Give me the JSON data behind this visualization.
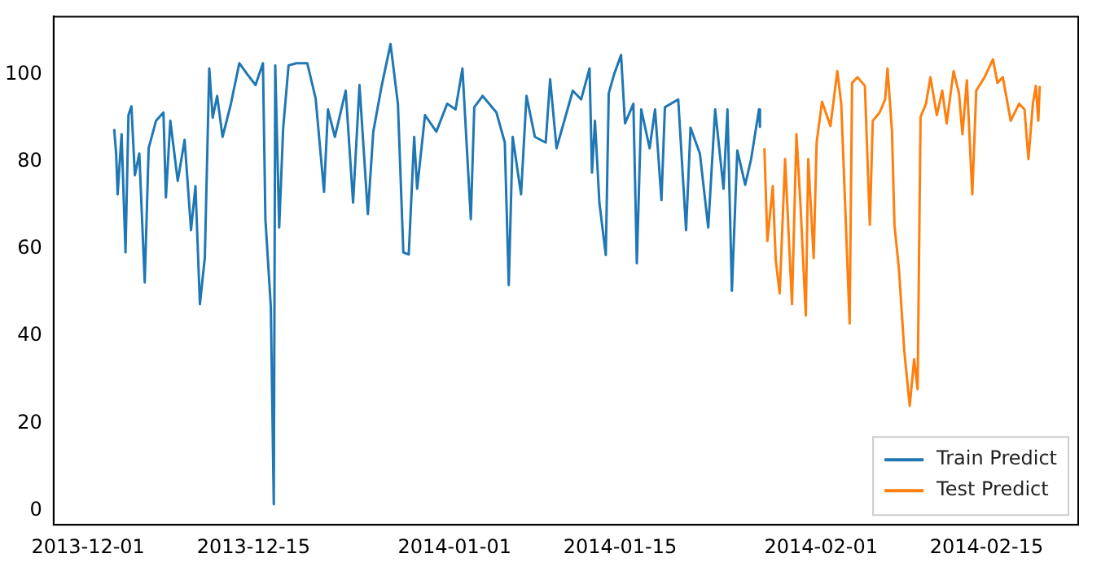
{
  "chart_data": {
    "type": "line",
    "xlim": [
      "2013-11-28T02:00",
      "2014-02-22T18:00"
    ],
    "xticks": [
      "2013-12-01",
      "2013-12-15",
      "2014-01-01",
      "2014-01-15",
      "2014-02-01",
      "2014-02-15"
    ],
    "ylim": [
      -3.3,
      113.3
    ],
    "yticks": [
      0,
      20,
      40,
      60,
      80,
      100
    ],
    "legend": "bottom right",
    "marker": "none",
    "line_style": "solid",
    "series": [
      {
        "name": "Train Predict",
        "color": "#1f77b4",
        "x": [
          "2013-12-03T05:00",
          "2013-12-03T09:00",
          "2013-12-03T12:00",
          "2013-12-03T20:00",
          "2013-12-04T04:00",
          "2013-12-04T10:00",
          "2013-12-04T16:00",
          "2013-12-04T23:00",
          "2013-12-05T08:00",
          "2013-12-05T19:00",
          "2013-12-06T03:00",
          "2013-12-06T18:00",
          "2013-12-07T09:00",
          "2013-12-07T14:00",
          "2013-12-07T23:00",
          "2013-12-08T14:00",
          "2013-12-09T04:00",
          "2013-12-09T17:00",
          "2013-12-10T02:00",
          "2013-12-10T11:00",
          "2013-12-10T21:00",
          "2013-12-11T06:00",
          "2013-12-11T13:00",
          "2013-12-11T22:00",
          "2013-12-12T09:00",
          "2013-12-13T02:00",
          "2013-12-13T19:00",
          "2013-12-14T11:00",
          "2013-12-15T04:00",
          "2013-12-15T19:00",
          "2013-12-16T00:00",
          "2013-12-16T11:00",
          "2013-12-16T17:00",
          "2013-12-16T20:00",
          "2013-12-17T04:00",
          "2013-12-17T12:00",
          "2013-12-17T23:00",
          "2013-12-18T15:00",
          "2013-12-19T13:00",
          "2013-12-20T06:00",
          "2013-12-20T23:00",
          "2013-12-21T07:00",
          "2013-12-21T21:00",
          "2013-12-22T19:00",
          "2013-12-23T10:00",
          "2013-12-23T23:00",
          "2013-12-24T16:00",
          "2013-12-25T03:00",
          "2013-12-25T20:00",
          "2013-12-26T14:00",
          "2013-12-27T05:00",
          "2013-12-27T16:00",
          "2013-12-28T03:00",
          "2013-12-28T14:00",
          "2013-12-28T20:00",
          "2013-12-29T12:00",
          "2013-12-30T11:00",
          "2013-12-31T09:00",
          "2014-01-01T02:00",
          "2014-01-01T16:00",
          "2014-01-02T09:00",
          "2014-01-02T16:00",
          "2014-01-03T09:00",
          "2014-01-04T13:00",
          "2014-01-05T06:00",
          "2014-01-05T14:00",
          "2014-01-05T22:00",
          "2014-01-06T15:00",
          "2014-01-07T02:00",
          "2014-01-07T19:00",
          "2014-01-08T17:00",
          "2014-01-09T02:00",
          "2014-01-09T15:00",
          "2014-01-11T00:00",
          "2014-01-11T17:00",
          "2014-01-12T10:00",
          "2014-01-12T15:00",
          "2014-01-12T21:00",
          "2014-01-13T06:00",
          "2014-01-13T19:00",
          "2014-01-14T01:00",
          "2014-01-14T12:00",
          "2014-01-15T02:00",
          "2014-01-15T10:00",
          "2014-01-16T03:00",
          "2014-01-16T10:00",
          "2014-01-16T19:00",
          "2014-01-17T12:00",
          "2014-01-17T23:00",
          "2014-01-18T12:00",
          "2014-01-18T19:00",
          "2014-01-19T22:00",
          "2014-01-20T14:00",
          "2014-01-20T23:00",
          "2014-01-21T18:00",
          "2014-01-22T11:00",
          "2014-01-23T01:00",
          "2014-01-23T18:00",
          "2014-01-24T02:00",
          "2014-01-24T11:00",
          "2014-01-24T22:00",
          "2014-01-25T14:00",
          "2014-01-26T02:00",
          "2014-01-26T18:00",
          "2014-01-26T20:00"
        ],
        "values": [
          87.5,
          81.9,
          72.5,
          86.3,
          59.2,
          90.7,
          92.7,
          76.9,
          81.9,
          52.3,
          83.1,
          89.4,
          91.3,
          71.8,
          89.4,
          75.6,
          85,
          64.3,
          74.4,
          47.3,
          58,
          101.4,
          90.1,
          95.1,
          85.7,
          93.3,
          102.6,
          100.1,
          97.6,
          102.6,
          66.8,
          46.7,
          1.4,
          102.1,
          64.9,
          87.6,
          102.1,
          102.6,
          102.6,
          94.5,
          73.1,
          92,
          85.7,
          96.3,
          70.6,
          97.6,
          68,
          86.9,
          97.4,
          107,
          93.3,
          59.2,
          58.7,
          85.7,
          73.8,
          90.7,
          86.9,
          93.3,
          92,
          101.4,
          66.8,
          92.5,
          95.1,
          91.3,
          84.4,
          51.7,
          85.7,
          72.5,
          95.1,
          85.7,
          84.4,
          98.9,
          83.1,
          96.3,
          94.3,
          101.4,
          77.5,
          89.4,
          70.6,
          58.6,
          95.7,
          100.1,
          104.5,
          88.8,
          93.3,
          56.7,
          92,
          83.1,
          92,
          71.2,
          92.5,
          94.3,
          64.3,
          87.8,
          81.9,
          64.9,
          92,
          73.8,
          92,
          50.4,
          82.6,
          74.7,
          80.6,
          92,
          88
        ]
      },
      {
        "name": "Test Predict",
        "color": "#ff7f0e",
        "x": [
          "2014-01-27T05:00",
          "2014-01-27T11:00",
          "2014-01-27T22:00",
          "2014-01-28T04:00",
          "2014-01-28T12:00",
          "2014-01-28T23:00",
          "2014-01-29T13:00",
          "2014-01-29T22:00",
          "2014-01-30T06:00",
          "2014-01-30T17:00",
          "2014-01-30T22:00",
          "2014-01-31T09:00",
          "2014-01-31T15:00",
          "2014-02-01T02:00",
          "2014-02-01T19:00",
          "2014-02-02T09:00",
          "2014-02-02T17:00",
          "2014-02-03T02:00",
          "2014-02-03T10:00",
          "2014-02-03T15:00",
          "2014-02-04T02:00",
          "2014-02-04T17:00",
          "2014-02-05T03:00",
          "2014-02-05T09:00",
          "2014-02-05T23:00",
          "2014-02-06T10:00",
          "2014-02-06T15:00",
          "2014-02-07T00:00",
          "2014-02-07T05:00",
          "2014-02-07T14:00",
          "2014-02-08T01:00",
          "2014-02-08T12:00",
          "2014-02-08T21:00",
          "2014-02-09T04:00",
          "2014-02-09T10:00",
          "2014-02-09T21:00",
          "2014-02-10T06:00",
          "2014-02-10T19:00",
          "2014-02-11T06:00",
          "2014-02-11T15:00",
          "2014-02-12T05:00",
          "2014-02-12T16:00",
          "2014-02-12T23:00",
          "2014-02-13T08:00",
          "2014-02-13T19:00",
          "2014-02-14T03:00",
          "2014-02-14T20:00",
          "2014-02-15T13:00",
          "2014-02-15T22:00",
          "2014-02-16T09:00",
          "2014-02-17T01:00",
          "2014-02-17T18:00",
          "2014-02-18T05:00",
          "2014-02-18T13:00",
          "2014-02-18T22:00",
          "2014-02-19T04:00",
          "2014-02-19T09:00",
          "2014-02-19T12:00"
        ],
        "values": [
          83.1,
          61.8,
          74.4,
          57.4,
          49.8,
          80.6,
          47.3,
          86.3,
          70.6,
          44.7,
          80.6,
          57.9,
          84.4,
          93.8,
          88.2,
          100.8,
          93.3,
          66.8,
          42.9,
          98.1,
          99.4,
          97.4,
          65.5,
          89.4,
          91.3,
          94.3,
          101.4,
          86.9,
          65.5,
          55.5,
          36.6,
          24,
          34.7,
          27.8,
          90.3,
          93.3,
          99.4,
          90.7,
          96.3,
          88.8,
          100.8,
          95.7,
          86.3,
          98.7,
          72.5,
          96.3,
          99.4,
          103.5,
          98.1,
          99.4,
          89.4,
          93.3,
          92,
          80.6,
          93.3,
          97.4,
          89.4,
          97.4
        ]
      }
    ]
  }
}
